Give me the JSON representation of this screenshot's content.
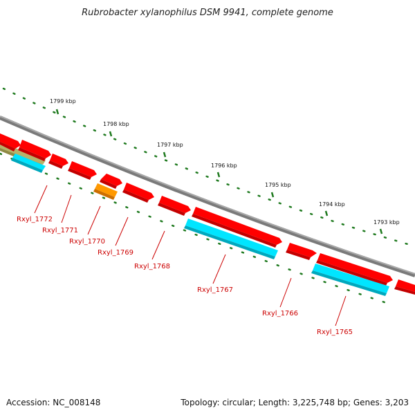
{
  "title": "Rubrobacter xylanophilus DSM 9941, complete genome",
  "footer": {
    "accession": "Accession: NC_008148",
    "summary": "Topology: circular; Length: 3,225,748 bp; Genes: 3,203"
  },
  "colors": {
    "backbone": "#8c8c8c",
    "tick": "#1f7a1f",
    "gene_red": "#ff0000",
    "gene_cyan": "#00e5ff",
    "gene_orange": "#ff9900",
    "gene_olive": "#b7b26a",
    "label": "#cc0000"
  },
  "ruler": [
    {
      "label": "1799 kbp"
    },
    {
      "label": "1798 kbp"
    },
    {
      "label": "1797 kbp"
    },
    {
      "label": "1796 kbp"
    },
    {
      "label": "1795 kbp"
    },
    {
      "label": "1794 kbp"
    },
    {
      "label": "1793 kbp"
    }
  ],
  "genes": [
    {
      "id": "Rxyl_1772",
      "label": "Rxyl_1772"
    },
    {
      "id": "Rxyl_1771",
      "label": "Rxyl_1771"
    },
    {
      "id": "Rxyl_1770",
      "label": "Rxyl_1770"
    },
    {
      "id": "Rxyl_1769",
      "label": "Rxyl_1769"
    },
    {
      "id": "Rxyl_1768",
      "label": "Rxyl_1768"
    },
    {
      "id": "Rxyl_1767",
      "label": "Rxyl_1767"
    },
    {
      "id": "Rxyl_1766",
      "label": "Rxyl_1766"
    },
    {
      "id": "Rxyl_1765",
      "label": "Rxyl_1765"
    }
  ]
}
